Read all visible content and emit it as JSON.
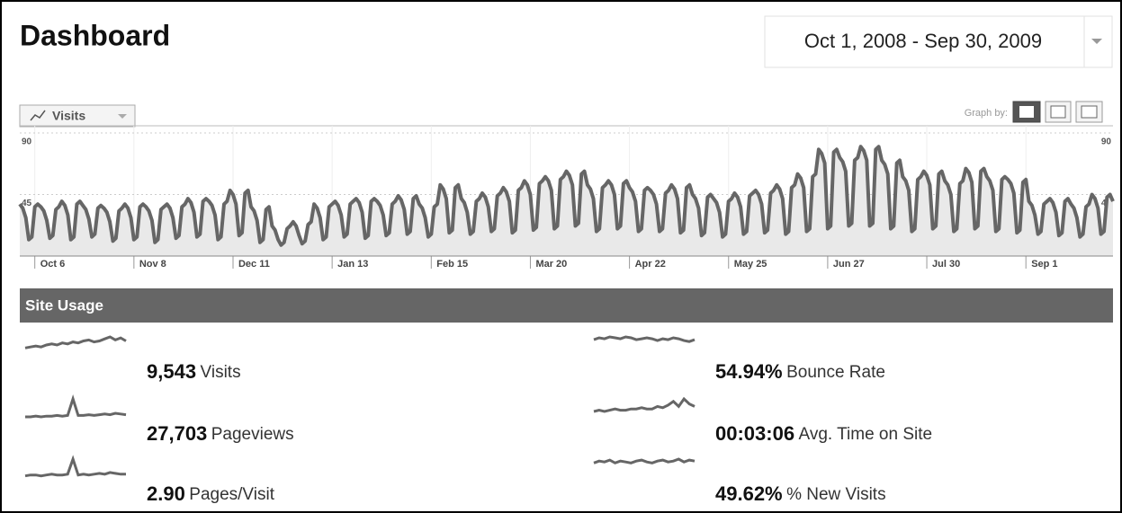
{
  "header": {
    "title": "Dashboard",
    "date_range": "Oct 1, 2008 - Sep 30, 2009"
  },
  "chart_data": {
    "type": "line",
    "metric_button": "Visits",
    "graph_by": "Graph by:",
    "color": "#666666",
    "ylim": [
      0,
      90
    ],
    "yticks": [
      45,
      90
    ],
    "grid": true,
    "categories": [
      null,
      null,
      null,
      null,
      null,
      "Oct 6",
      null,
      null,
      null,
      null,
      null,
      null,
      null,
      null,
      null,
      null,
      null,
      null,
      null,
      null,
      null,
      null,
      null,
      null,
      null,
      null,
      null,
      null,
      null,
      null,
      null,
      null,
      null,
      null,
      null,
      null,
      null,
      null,
      "Nov 8",
      null,
      null,
      null,
      null,
      null,
      null,
      null,
      null,
      null,
      null,
      null,
      null,
      null,
      null,
      null,
      null,
      null,
      null,
      null,
      null,
      null,
      null,
      null,
      null,
      null,
      null,
      null,
      null,
      null,
      null,
      null,
      null,
      "Dec 11",
      null,
      null,
      null,
      null,
      null,
      null,
      null,
      null,
      null,
      null,
      null,
      null,
      null,
      null,
      null,
      null,
      null,
      null,
      null,
      null,
      null,
      null,
      null,
      null,
      null,
      null,
      null,
      null,
      null,
      null,
      null,
      null,
      "Jan 13",
      null,
      null,
      null,
      null,
      null,
      null,
      null,
      null,
      null,
      null,
      null,
      null,
      null,
      null,
      null,
      null,
      null,
      null,
      null,
      null,
      null,
      null,
      null,
      null,
      null,
      null,
      null,
      null,
      null,
      null,
      null,
      null,
      "Feb 15",
      null,
      null,
      null,
      null,
      null,
      null,
      null,
      null,
      null,
      null,
      null,
      null,
      null,
      null,
      null,
      null,
      null,
      null,
      null,
      null,
      null,
      null,
      null,
      null,
      null,
      null,
      null,
      null,
      null,
      null,
      null,
      null,
      "Mar 20",
      null,
      null,
      null,
      null,
      null,
      null,
      null,
      null,
      null,
      null,
      null,
      null,
      null,
      null,
      null,
      null,
      null,
      null,
      null,
      null,
      null,
      null,
      null,
      null,
      null,
      null,
      null,
      null,
      null,
      null,
      null,
      null,
      "Apr 22",
      null,
      null,
      null,
      null,
      null,
      null,
      null,
      null,
      null,
      null,
      null,
      null,
      null,
      null,
      null,
      null,
      null,
      null,
      null,
      null,
      null,
      null,
      null,
      null,
      null,
      null,
      null,
      null,
      null,
      null,
      null,
      null,
      "May 25",
      null,
      null,
      null,
      null,
      null,
      null,
      null,
      null,
      null,
      null,
      null,
      null,
      null,
      null,
      null,
      null,
      null,
      null,
      null,
      null,
      null,
      null,
      null,
      null,
      null,
      null,
      null,
      null,
      null,
      null,
      null,
      null,
      "Jun 27",
      null,
      null,
      null,
      null,
      null,
      null,
      null,
      null,
      null,
      null,
      null,
      null,
      null,
      null,
      null,
      null,
      null,
      null,
      null,
      null,
      null,
      null,
      null,
      null,
      null,
      null,
      null,
      null,
      null,
      null,
      null,
      null,
      "Jul 30",
      null,
      null,
      null,
      null,
      null,
      null,
      null,
      null,
      null,
      null,
      null,
      null,
      null,
      null,
      null,
      null,
      null,
      null,
      null,
      null,
      null,
      null,
      null,
      null,
      null,
      null,
      null,
      null,
      null,
      null,
      null,
      null,
      "Sep 1",
      null,
      null,
      null,
      null,
      null,
      null,
      null,
      null,
      null,
      null,
      null,
      null,
      null,
      null,
      null,
      null,
      null,
      null,
      null,
      null,
      null,
      null,
      null,
      null,
      null,
      null,
      null,
      null,
      null
    ],
    "values": [
      38,
      35,
      28,
      12,
      14,
      36,
      38,
      36,
      33,
      26,
      13,
      15,
      34,
      36,
      40,
      37,
      30,
      12,
      14,
      38,
      40,
      37,
      34,
      27,
      14,
      16,
      35,
      37,
      35,
      32,
      25,
      11,
      13,
      33,
      35,
      38,
      35,
      28,
      12,
      14,
      36,
      38,
      36,
      33,
      26,
      10,
      12,
      34,
      36,
      38,
      35,
      28,
      13,
      15,
      36,
      38,
      42,
      39,
      32,
      14,
      16,
      40,
      42,
      40,
      37,
      30,
      12,
      14,
      38,
      40,
      48,
      45,
      38,
      15,
      17,
      46,
      48,
      36,
      33,
      26,
      10,
      12,
      34,
      36,
      22,
      19,
      12,
      8,
      10,
      20,
      22,
      25,
      22,
      15,
      9,
      11,
      23,
      25,
      38,
      35,
      28,
      12,
      14,
      36,
      38,
      40,
      37,
      30,
      14,
      16,
      38,
      40,
      42,
      39,
      32,
      13,
      15,
      40,
      42,
      40,
      37,
      30,
      15,
      17,
      38,
      40,
      44,
      41,
      34,
      16,
      18,
      42,
      44,
      38,
      35,
      28,
      14,
      16,
      36,
      38,
      52,
      49,
      42,
      17,
      19,
      50,
      52,
      42,
      39,
      32,
      16,
      18,
      40,
      42,
      46,
      43,
      36,
      18,
      20,
      44,
      46,
      50,
      47,
      40,
      17,
      19,
      48,
      50,
      55,
      52,
      45,
      19,
      21,
      53,
      55,
      58,
      55,
      48,
      20,
      22,
      56,
      58,
      62,
      59,
      52,
      22,
      24,
      60,
      62,
      52,
      49,
      42,
      18,
      20,
      50,
      52,
      55,
      52,
      45,
      20,
      22,
      53,
      55,
      50,
      47,
      40,
      18,
      20,
      48,
      50,
      48,
      45,
      38,
      18,
      20,
      46,
      48,
      52,
      49,
      42,
      17,
      19,
      50,
      52,
      45,
      42,
      35,
      15,
      17,
      43,
      45,
      42,
      39,
      32,
      14,
      16,
      40,
      42,
      46,
      43,
      36,
      16,
      18,
      44,
      46,
      48,
      45,
      38,
      17,
      19,
      46,
      48,
      52,
      49,
      42,
      16,
      18,
      50,
      52,
      60,
      57,
      50,
      18,
      20,
      58,
      60,
      78,
      75,
      68,
      20,
      22,
      76,
      78,
      72,
      69,
      62,
      22,
      24,
      70,
      72,
      80,
      77,
      70,
      22,
      24,
      78,
      80,
      70,
      67,
      60,
      20,
      22,
      68,
      70,
      58,
      55,
      48,
      18,
      20,
      56,
      58,
      62,
      59,
      52,
      20,
      22,
      60,
      62,
      55,
      52,
      45,
      18,
      20,
      53,
      55,
      64,
      61,
      54,
      20,
      22,
      62,
      64,
      58,
      55,
      48,
      18,
      20,
      56,
      58,
      56,
      53,
      46,
      17,
      19,
      54,
      56,
      40,
      37,
      30,
      16,
      18,
      38,
      40,
      42,
      39,
      32,
      15,
      17,
      40,
      42,
      38,
      35,
      28,
      14,
      16,
      36,
      38,
      45,
      42,
      35,
      16,
      18,
      43,
      45,
      40
    ]
  },
  "site_usage": {
    "title": "Site Usage",
    "metrics": [
      {
        "value": "9,543",
        "label": "Visits",
        "sparkline": [
          14,
          15,
          16,
          15,
          17,
          18,
          17,
          19,
          18,
          20,
          19,
          21,
          22,
          20,
          21,
          23,
          25,
          22,
          24,
          21
        ]
      },
      {
        "value": "27,703",
        "label": "Pageviews",
        "sparkline": [
          10,
          10,
          11,
          10,
          11,
          11,
          12,
          11,
          12,
          35,
          12,
          12,
          13,
          12,
          13,
          14,
          13,
          15,
          14,
          13
        ]
      },
      {
        "value": "2.90",
        "label": "Pages/Visit",
        "sparkline": [
          10,
          11,
          11,
          10,
          11,
          12,
          11,
          11,
          12,
          30,
          11,
          12,
          11,
          12,
          13,
          12,
          14,
          13,
          12,
          12
        ]
      },
      {
        "value": "54.94%",
        "label": "Bounce Rate",
        "sparkline": [
          24,
          26,
          25,
          27,
          26,
          25,
          27,
          26,
          24,
          25,
          26,
          25,
          23,
          25,
          24,
          26,
          25,
          23,
          22,
          24
        ]
      },
      {
        "value": "00:03:06",
        "label": "Avg. Time on Site",
        "sparkline": [
          10,
          11,
          10,
          11,
          12,
          11,
          11,
          12,
          12,
          13,
          12,
          12,
          14,
          13,
          15,
          18,
          14,
          20,
          16,
          14
        ]
      },
      {
        "value": "49.62%",
        "label": "% New Visits",
        "sparkline": [
          22,
          24,
          23,
          25,
          22,
          24,
          23,
          22,
          24,
          25,
          23,
          22,
          24,
          25,
          23,
          24,
          26,
          23,
          25,
          24
        ]
      }
    ]
  }
}
